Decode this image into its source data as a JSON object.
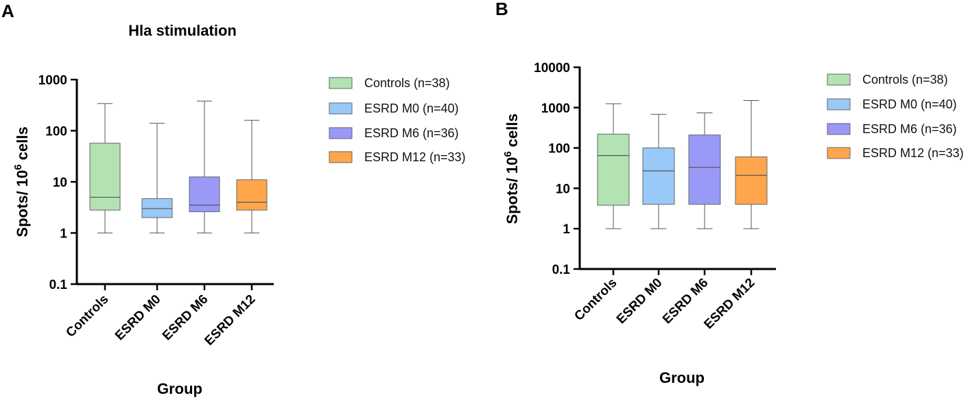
{
  "chart_data": [
    {
      "panel": "A",
      "type": "box",
      "title": "Hla stimulation",
      "xlabel": "Group",
      "ylabel_main": "Spots/ 10",
      "ylabel_sup": "6",
      "ylabel_tail": " cells",
      "yscale": "log",
      "ylim": [
        0.1,
        1000
      ],
      "yticks": [
        0.1,
        1,
        10,
        100,
        1000
      ],
      "ytick_labels": [
        "0.1",
        "1",
        "10",
        "100",
        "1000"
      ],
      "categories": [
        "Controls",
        "ESRD M0",
        "ESRD M6",
        "ESRD M12"
      ],
      "boxes": [
        {
          "min": 1,
          "q1": 2.8,
          "median": 5,
          "q3": 57,
          "max": 340
        },
        {
          "min": 1,
          "q1": 2.0,
          "median": 3,
          "q3": 4.7,
          "max": 140
        },
        {
          "min": 1,
          "q1": 2.6,
          "median": 3.5,
          "q3": 12.5,
          "max": 380
        },
        {
          "min": 1,
          "q1": 2.8,
          "median": 4,
          "q3": 11,
          "max": 160
        }
      ],
      "legend": [
        "Controls (n=38)",
        "ESRD M0 (n=40)",
        "ESRD M6 (n=36)",
        "ESRD M12 (n=33)"
      ],
      "legend_position": "right",
      "colors": [
        "#b3e2b3",
        "#99c9f7",
        "#9999f7",
        "#ffa64d"
      ]
    },
    {
      "panel": "B",
      "type": "box",
      "title": "",
      "xlabel": "Group",
      "ylabel_main": "Spots/ 10",
      "ylabel_sup": "6",
      "ylabel_tail": " cells",
      "yscale": "log",
      "ylim": [
        0.1,
        10000
      ],
      "yticks": [
        0.1,
        1,
        10,
        100,
        1000,
        10000
      ],
      "ytick_labels": [
        "0.1",
        "1",
        "10",
        "100",
        "1000",
        "10000"
      ],
      "categories": [
        "Controls",
        "ESRD M0",
        "ESRD M6",
        "ESRD M12"
      ],
      "boxes": [
        {
          "min": 1,
          "q1": 3.8,
          "median": 65,
          "q3": 220,
          "max": 1250
        },
        {
          "min": 1,
          "q1": 4,
          "median": 27,
          "q3": 100,
          "max": 680
        },
        {
          "min": 1,
          "q1": 4,
          "median": 33,
          "q3": 210,
          "max": 740
        },
        {
          "min": 1,
          "q1": 4,
          "median": 21,
          "q3": 60,
          "max": 1500
        }
      ],
      "legend": [
        "Controls (n=38)",
        "ESRD M0 (n=40)",
        "ESRD M6 (n=36)",
        "ESRD M12 (n=33)"
      ],
      "legend_position": "right",
      "colors": [
        "#b3e2b3",
        "#99c9f7",
        "#9999f7",
        "#ffa64d"
      ]
    }
  ]
}
